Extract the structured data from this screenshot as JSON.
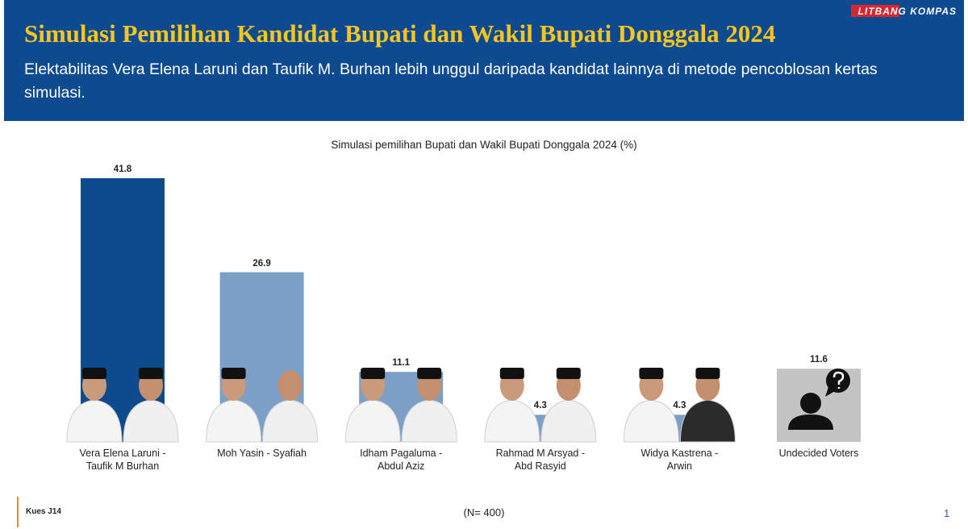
{
  "header": {
    "logo": "LITBANG KOMPAS",
    "title": "Simulasi Pemilihan Kandidat Bupati dan Wakil Bupati Donggala 2024",
    "subtitle": "Elektabilitas Vera Elena Laruni dan Taufik M. Burhan lebih unggul daripada kandidat lainnya di metode pencoblosan kertas simulasi."
  },
  "chart_data": {
    "type": "bar",
    "title": "Simulasi pemilihan Bupati dan Wakil Bupati Donggala 2024 (%)",
    "categories": [
      "Vera Elena Laruni - Taufik M Burhan",
      "Moh Yasin - Syafiah",
      "Idham Pagaluma - Abdul Aziz",
      "Rahmad M Arsyad - Abd Rasyid",
      "Widya Kastrena - Arwin",
      "Undecided Voters"
    ],
    "values": [
      41.8,
      26.9,
      11.1,
      4.3,
      4.3,
      11.6
    ],
    "colors": [
      "#0e4a8e",
      "#7b9fc6",
      "#7b9fc6",
      "#7b9fc6",
      "#7b9fc6",
      "#c4c4c4"
    ]
  },
  "footer": {
    "code": "Kues J14",
    "sample": "(N= 400)",
    "page": "1"
  }
}
